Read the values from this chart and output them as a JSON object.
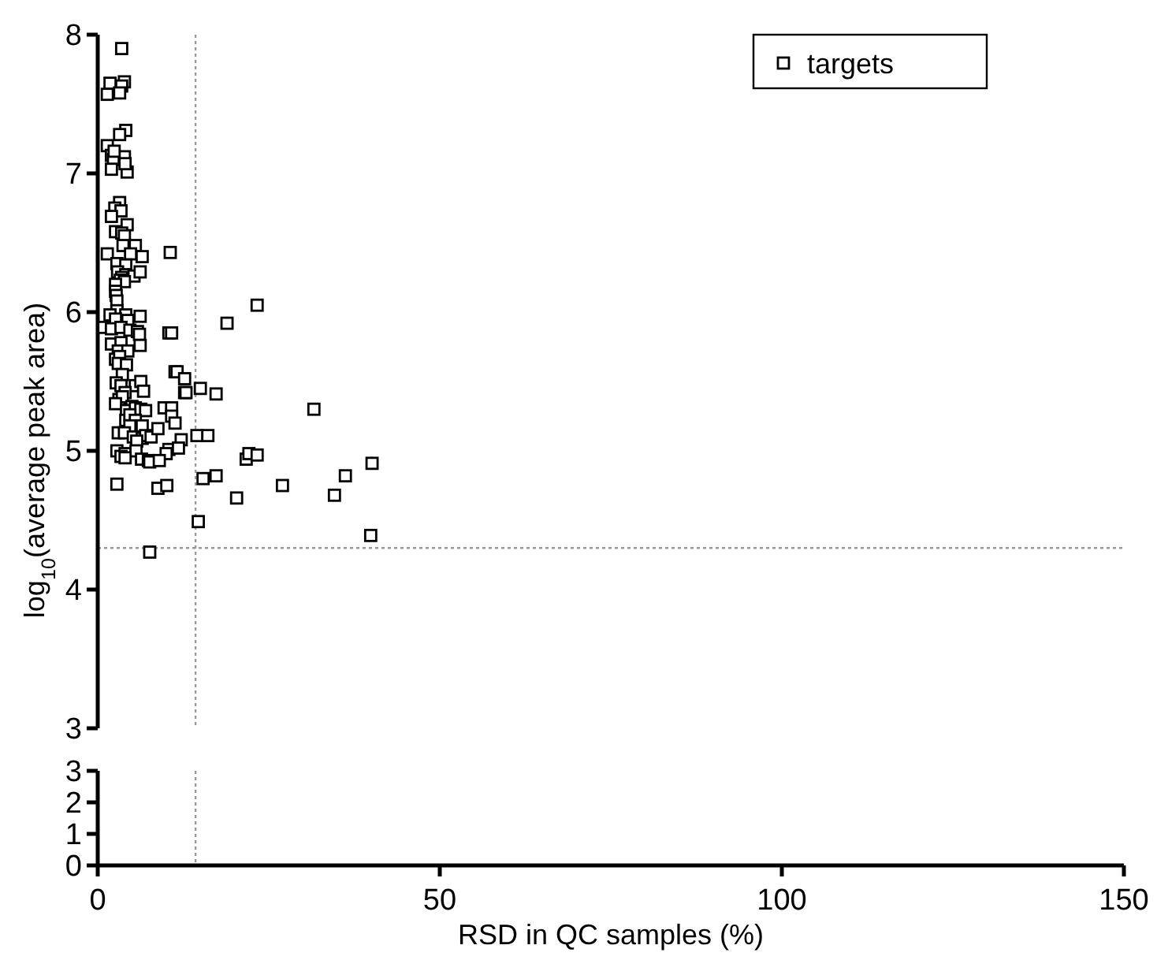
{
  "chart_data": [
    {
      "type": "scatter",
      "ylabel": "log$_{10}$(average peak area)",
      "xlim": [
        0,
        150
      ],
      "ylim": [
        3,
        8
      ],
      "yticks": [
        3,
        4,
        5,
        6,
        7,
        8
      ],
      "tick_labels": "y",
      "grid": false,
      "legend": "top right",
      "marker": "square",
      "ref_lines": [
        {
          "axis": "x",
          "value": 14.3,
          "line_style": "dotted",
          "color": "#999999"
        },
        {
          "axis": "y",
          "value": 4.3,
          "line_style": "dotted",
          "color": "#999999"
        }
      ],
      "series": [
        {
          "name": "targets",
          "color": "#000000",
          "x": [
            3.5,
            1.8,
            3.9,
            3.5,
            1.4,
            3.2,
            4.1,
            3.2,
            1.4,
            2.0,
            2.3,
            3.9,
            2.0,
            4.3,
            4.0,
            2.4,
            3.2,
            2.5,
            3.4,
            2.0,
            4.3,
            2.6,
            3.5,
            3.9,
            3.7,
            5.5,
            1.4,
            4.8,
            6.5,
            10.6,
            2.8,
            4.1,
            2.9,
            4.1,
            3.5,
            5.3,
            3.3,
            6.2,
            3.9,
            2.6,
            2.6,
            2.7,
            2.8,
            2.8,
            1.8,
            4.1,
            6.2,
            2.6,
            4.4,
            0.9,
            2.0,
            3.4,
            4.7,
            5.8,
            6.1,
            10.4,
            10.8,
            2.0,
            3.4,
            3.0,
            4.4,
            2.6,
            3.2,
            6.2,
            3.0,
            4.2,
            3.6,
            2.7,
            3.4,
            5.5,
            6.3,
            4.0,
            6.7,
            3.1,
            3.6,
            2.6,
            5.0,
            4.2,
            5.5,
            6.3,
            7.0,
            4.1,
            4.7,
            5.5,
            6.5,
            4.7,
            3.0,
            3.9,
            5.2,
            6.5,
            7.0,
            7.8,
            5.7,
            2.8,
            4.0,
            3.4,
            5.6,
            6.4,
            7.4,
            10.4,
            10.0,
            4.0,
            2.8,
            8.8,
            10.1,
            7.6,
            23.3,
            18.9,
            11.3,
            11.6,
            12.7,
            15.0,
            12.7,
            12.9,
            17.3,
            31.6,
            9.7,
            10.8,
            10.8,
            11.3,
            12.2,
            11.8,
            14.5,
            16.1,
            8.8,
            7.6,
            9.0,
            21.7,
            22.1,
            23.3,
            40.1,
            15.4,
            17.3,
            27.0,
            36.2,
            20.3,
            34.6,
            14.7,
            39.9
          ],
          "values": [
            7.9,
            7.65,
            7.66,
            7.63,
            7.57,
            7.58,
            7.31,
            7.28,
            7.2,
            7.13,
            7.1,
            7.12,
            7.03,
            7.01,
            7.07,
            7.16,
            6.79,
            6.75,
            6.73,
            6.69,
            6.63,
            6.58,
            6.57,
            6.55,
            6.48,
            6.48,
            6.42,
            6.42,
            6.4,
            6.43,
            6.35,
            6.34,
            6.29,
            6.27,
            6.25,
            6.26,
            6.23,
            6.29,
            6.22,
            6.2,
            6.15,
            6.12,
            6.08,
            6.01,
            5.98,
            5.98,
            5.97,
            5.95,
            5.94,
            5.89,
            5.88,
            5.89,
            5.87,
            5.86,
            5.84,
            5.85,
            5.85,
            5.77,
            5.78,
            5.72,
            5.72,
            5.66,
            5.68,
            5.76,
            5.63,
            5.62,
            5.55,
            5.49,
            5.47,
            5.47,
            5.5,
            5.42,
            5.43,
            5.37,
            5.39,
            5.34,
            5.32,
            5.29,
            5.31,
            5.3,
            5.29,
            5.22,
            5.26,
            5.22,
            5.18,
            5.18,
            5.13,
            5.13,
            5.1,
            5.09,
            5.11,
            5.1,
            5.07,
            5.0,
            4.98,
            4.96,
            5.0,
            4.94,
            4.93,
            5.01,
            4.98,
            4.95,
            4.76,
            4.73,
            4.75,
            4.27,
            6.05,
            5.92,
            5.57,
            5.57,
            5.52,
            5.45,
            5.42,
            5.42,
            5.41,
            5.3,
            5.31,
            5.31,
            5.25,
            5.2,
            5.08,
            5.02,
            5.11,
            5.11,
            5.16,
            4.92,
            4.93,
            4.94,
            4.98,
            4.97,
            4.91,
            4.8,
            4.82,
            4.75,
            4.82,
            4.66,
            4.68,
            4.49,
            4.39
          ]
        }
      ]
    },
    {
      "type": "scatter",
      "xlabel": "RSD in QC samples (%)",
      "xlim": [
        0,
        150
      ],
      "xticks": [
        0,
        50,
        100,
        150
      ],
      "ylim": [
        0,
        3
      ],
      "yticks": [
        0,
        1,
        2,
        3
      ],
      "grid": false,
      "ref_lines": [
        {
          "axis": "x",
          "value": 14.3,
          "line_style": "dotted",
          "color": "#999999"
        }
      ]
    }
  ]
}
